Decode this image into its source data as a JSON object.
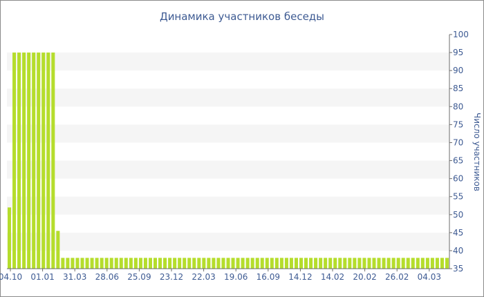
{
  "chart_data": {
    "type": "bar",
    "title": "Динамика участников беседы",
    "xlabel": "",
    "ylabel": "Число участников",
    "ylim": [
      35,
      100
    ],
    "yticks": [
      35,
      40,
      45,
      50,
      55,
      60,
      65,
      70,
      75,
      80,
      85,
      90,
      95,
      100
    ],
    "xtick_labels": [
      "04.10",
      "01.01",
      "31.03",
      "28.06",
      "25.09",
      "23.12",
      "22.03",
      "19.06",
      "16.09",
      "14.12",
      "14.02",
      "20.02",
      "26.02",
      "04.03"
    ],
    "grid": "alternating horizontal bands",
    "bar_color": "#b5dd2c",
    "band_color": "#f5f5f5",
    "values": [
      52,
      95,
      95,
      95,
      95,
      95,
      95,
      95,
      95,
      95,
      45.5,
      38,
      38,
      38,
      38,
      38,
      38,
      38,
      38,
      38,
      38,
      38,
      38,
      38,
      38,
      38,
      38,
      38,
      38,
      38,
      38,
      38,
      38,
      38,
      38,
      38,
      38,
      38,
      38,
      38,
      38,
      38,
      38,
      38,
      38,
      38,
      38,
      38,
      38,
      38,
      38,
      38,
      38,
      38,
      38,
      38,
      38,
      38,
      38,
      38,
      38,
      38,
      38,
      38,
      38,
      38,
      38,
      38,
      38,
      38,
      38,
      38,
      38,
      38,
      38,
      38,
      38,
      38,
      38,
      38,
      38,
      38,
      38,
      38,
      38,
      38,
      38,
      38,
      38,
      38,
      38
    ]
  }
}
